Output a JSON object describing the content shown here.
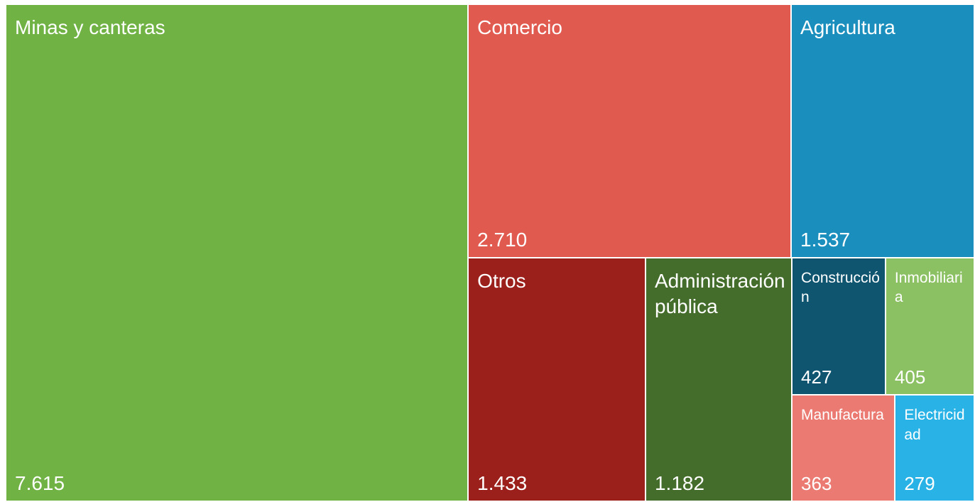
{
  "chart_data": {
    "type": "treemap",
    "categories": [
      "Minas y canteras",
      "Comercio",
      "Agricultura",
      "Otros",
      "Administración pública",
      "Construcción",
      "Inmobiliaria",
      "Manufactura",
      "Electricidad"
    ],
    "values": [
      7615,
      2710,
      1537,
      1433,
      1182,
      427,
      405,
      363,
      279
    ],
    "value_labels": [
      "7.615",
      "2.710",
      "1.537",
      "1.433",
      "1.182",
      "427",
      "405",
      "363",
      "279"
    ],
    "colors": [
      "#70b244",
      "#e15a50",
      "#1a8fbd",
      "#9b1f1a",
      "#446c2a",
      "#0f5570",
      "#8cc163",
      "#eb7a72",
      "#28b2e6"
    ]
  }
}
